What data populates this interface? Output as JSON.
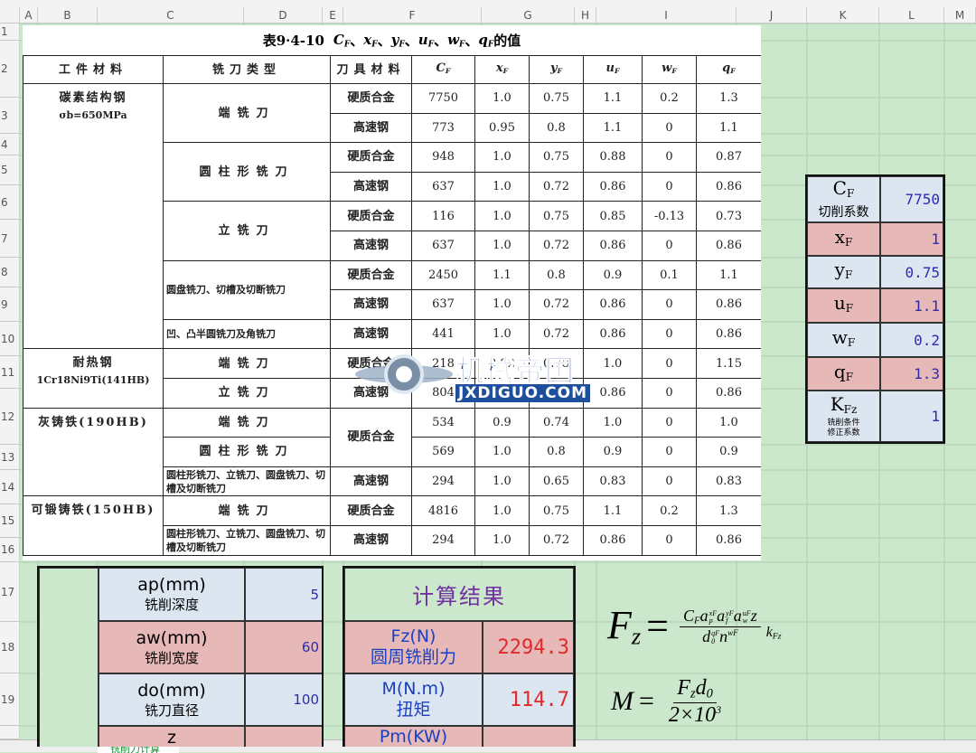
{
  "sheet": {
    "columns": [
      "A",
      "B",
      "C",
      "D",
      "E",
      "F",
      "G",
      "H",
      "I",
      "J",
      "K",
      "L",
      "M"
    ],
    "rows": [
      1,
      2,
      3,
      4,
      5,
      6,
      7,
      8,
      9,
      10,
      11,
      12,
      13,
      14,
      15,
      16,
      17,
      18,
      19
    ],
    "tab": "铣削力计算"
  },
  "scan_table": {
    "title": {
      "prefix": "表9·4-10",
      "symbols": [
        {
          "b": "C",
          "sub": "F"
        },
        {
          "b": "x",
          "sub": "F"
        },
        {
          "b": "y",
          "sub": "F"
        },
        {
          "b": "u",
          "sub": "F"
        },
        {
          "b": "w",
          "sub": "F"
        },
        {
          "b": "q",
          "sub": "F"
        }
      ],
      "separator": "、",
      "suffix": "的值"
    },
    "headers": [
      "工件材料",
      "铣刀类型",
      "刀具材料"
    ],
    "symbol_headers": [
      {
        "b": "C",
        "sub": "F"
      },
      {
        "b": "x",
        "sub": "F"
      },
      {
        "b": "y",
        "sub": "F"
      },
      {
        "b": "u",
        "sub": "F"
      },
      {
        "b": "w",
        "sub": "F"
      },
      {
        "b": "q",
        "sub": "F"
      }
    ],
    "rows": [
      {
        "material": "碳素结构钢",
        "note": "σb=650MPa",
        "cutter": "端铣刀",
        "tool": "硬质合金",
        "values": [
          "7750",
          "1.0",
          "0.75",
          "1.1",
          "0.2",
          "1.3"
        ]
      },
      {
        "tool": "高速钢",
        "values": [
          "773",
          "0.95",
          "0.8",
          "1.1",
          "0",
          "1.1"
        ]
      },
      {
        "cutter": "圆柱形铣刀",
        "tool": "硬质合金",
        "values": [
          "948",
          "1.0",
          "0.75",
          "0.88",
          "0",
          "0.87"
        ]
      },
      {
        "tool": "高速钢",
        "values": [
          "637",
          "1.0",
          "0.72",
          "0.86",
          "0",
          "0.86"
        ]
      },
      {
        "cutter": "立铣刀",
        "tool": "硬质合金",
        "values": [
          "116",
          "1.0",
          "0.75",
          "0.85",
          "-0.13",
          "0.73"
        ]
      },
      {
        "tool": "高速钢",
        "values": [
          "637",
          "1.0",
          "0.72",
          "0.86",
          "0",
          "0.86"
        ]
      },
      {
        "cutter": "圆盘铣刀、切槽及切断铣刀",
        "tool": "硬质合金",
        "values": [
          "2450",
          "1.1",
          "0.8",
          "0.9",
          "0.1",
          "1.1"
        ]
      },
      {
        "tool": "高速钢",
        "values": [
          "637",
          "1.0",
          "0.72",
          "0.86",
          "0",
          "0.86"
        ]
      },
      {
        "cutter": "凹、凸半圆铣刀及角铣刀",
        "tool": "高速钢",
        "values": [
          "441",
          "1.0",
          "0.72",
          "0.86",
          "0",
          "0.86"
        ]
      },
      {
        "material": "耐热钢",
        "note": "1Cr18Ni9Ti(141HB)",
        "cutter": "端铣刀",
        "tool": "硬质合金",
        "values": [
          "218",
          "0.92",
          "0.78",
          "1.0",
          "0",
          "1.15"
        ]
      },
      {
        "cutter": "立铣刀",
        "tool": "高速钢",
        "values": [
          "804",
          "1.0",
          "0.75",
          "0.86",
          "0",
          "0.86"
        ]
      },
      {
        "material": "灰铸铁(190HB)",
        "cutter": "端铣刀",
        "tool": "硬质合金",
        "values": [
          "534",
          "0.9",
          "0.74",
          "1.0",
          "0",
          "1.0"
        ]
      },
      {
        "cutter": "圆柱形铣刀",
        "values": [
          "569",
          "1.0",
          "0.8",
          "0.9",
          "0",
          "0.9"
        ]
      },
      {
        "cutter": "圆柱形铣刀、立铣刀、圆盘铣刀、切槽及切断铣刀",
        "tool": "高速钢",
        "values": [
          "294",
          "1.0",
          "0.65",
          "0.83",
          "0",
          "0.83"
        ]
      },
      {
        "material": "可锻铸铁(150HB)",
        "cutter": "端铣刀",
        "tool": "硬质合金",
        "values": [
          "4816",
          "1.0",
          "0.75",
          "1.1",
          "0.2",
          "1.3"
        ]
      },
      {
        "cutter": "圆柱形铣刀、立铣刀、圆盘铣刀、切槽及切断铣刀",
        "tool": "高速钢",
        "values": [
          "294",
          "1.0",
          "0.72",
          "0.86",
          "0",
          "0.86"
        ]
      }
    ]
  },
  "watermark": {
    "name": "机械帝国",
    "site": "JXDIGUO.COM"
  },
  "coefficients": [
    {
      "symbol": {
        "b": "C",
        "sub": "F"
      },
      "desc": "切削系数",
      "value": 7750
    },
    {
      "symbol": {
        "b": "x",
        "sub": "F"
      },
      "value": 1
    },
    {
      "symbol": {
        "b": "y",
        "sub": "F"
      },
      "value": 0.75
    },
    {
      "symbol": {
        "b": "u",
        "sub": "F"
      },
      "value": 1.1
    },
    {
      "symbol": {
        "b": "w",
        "sub": "F"
      },
      "value": 0.2
    },
    {
      "symbol": {
        "b": "q",
        "sub": "F"
      },
      "value": 1.3
    },
    {
      "symbol": {
        "b": "K",
        "sub": "Fz"
      },
      "desc_lines": [
        "铣削条件",
        "修正系数"
      ],
      "value": 1
    }
  ],
  "inputs": [
    {
      "label": "ap(mm)",
      "desc": "铣削深度",
      "value": 5
    },
    {
      "label": "aw(mm)",
      "desc": "铣削宽度",
      "value": 60
    },
    {
      "label": "do(mm)",
      "desc": "铣刀直径",
      "value": 100
    },
    {
      "label": "z"
    }
  ],
  "results": {
    "title": "计算结果",
    "rows": [
      {
        "label": "Fz(N)",
        "desc": "圆周铣削力",
        "value": 2294.3
      },
      {
        "label": "M(N.m)",
        "desc": "扭矩",
        "value": 114.7
      },
      {
        "label": "Pm(KW)"
      }
    ]
  },
  "formulas": {
    "fz": {
      "lhs": {
        "b": "F",
        "sub": "z"
      },
      "eq": "=",
      "numerator": [
        {
          "b": "C",
          "sub": "F"
        },
        {
          "b": "a",
          "sub": "p",
          "sup": "xF"
        },
        {
          "b": "a",
          "sub": "f",
          "sup": "yF"
        },
        {
          "b": "a",
          "sub": "w",
          "sup": "uF"
        },
        {
          "b": "z"
        }
      ],
      "denominator": [
        {
          "b": "d",
          "sub": "0",
          "sup": "qF"
        },
        {
          "b": "n",
          "sup": "wF"
        }
      ],
      "tail": {
        "b": "k",
        "sub": "Fz"
      }
    },
    "m": {
      "lhs": {
        "b": "M"
      },
      "eq": "=",
      "numerator": [
        {
          "b": "F",
          "sub": "z"
        },
        {
          "b": "d",
          "sub": "0"
        }
      ],
      "denominator": [
        {
          "b": "2×10",
          "sup": "3"
        }
      ]
    }
  }
}
